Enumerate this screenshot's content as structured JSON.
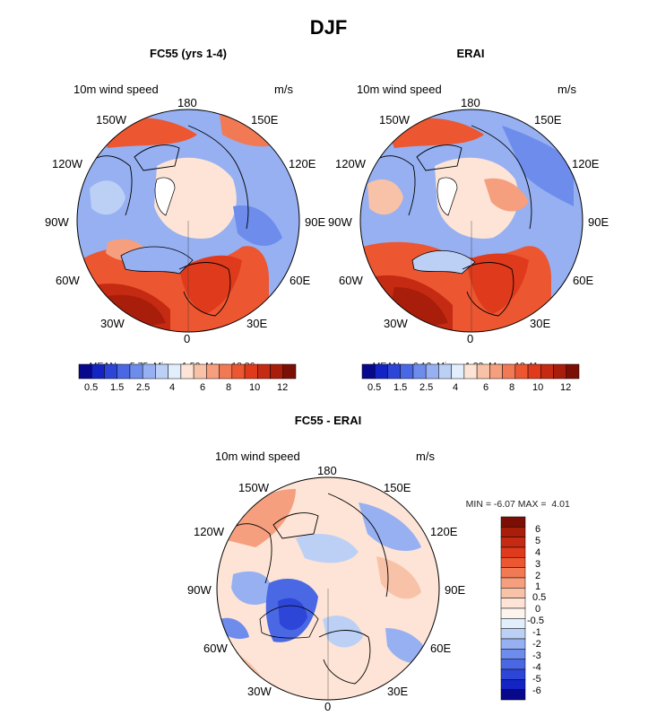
{
  "title": "DJF",
  "colors": {
    "hbar": [
      "#08088c",
      "#1424c4",
      "#2e46d8",
      "#4a68e4",
      "#6d8cec",
      "#96b0f2",
      "#bcd0f6",
      "#e2eefc",
      "#fde4d6",
      "#f8c2a8",
      "#f59f7e",
      "#f17a55",
      "#ec5631",
      "#df3a1c",
      "#c52a12",
      "#a81e0b",
      "#7c0f05"
    ],
    "vbar": [
      "#7c0f05",
      "#a81e0b",
      "#c52a12",
      "#df3a1c",
      "#ec5631",
      "#f17a55",
      "#f59f7e",
      "#f8c2a8",
      "#fde4d6",
      "#fdf4ee",
      "#e2eefc",
      "#bcd0f6",
      "#96b0f2",
      "#6d8cec",
      "#4a68e4",
      "#2e46d8",
      "#1424c4",
      "#08088c"
    ]
  },
  "panels": [
    {
      "id": "fc55",
      "subtitle": "FC55 (yrs 1-4)",
      "variable": "10m wind speed",
      "units": "m/s",
      "lon_labels": {
        "n180": "180",
        "n150w": "150W",
        "n150e": "150E",
        "n120w": "120W",
        "n120e": "120E",
        "n90w": "90W",
        "n90e": "90E",
        "n60w": "60W",
        "n60e": "60E",
        "n30w": "30W",
        "n30e": "30E",
        "n0": "0"
      },
      "stats": {
        "mean_label": "MEAN=",
        "mean": "5.75",
        "min_label": "Min=",
        "min": "1.50",
        "max_label": "Max=",
        "max": "13.36"
      },
      "colorbar_ticks": [
        "0.5",
        "1.5",
        "2.5",
        "4",
        "6",
        "8",
        "10",
        "12"
      ]
    },
    {
      "id": "erai",
      "subtitle": "ERAI",
      "variable": "10m wind speed",
      "units": "m/s",
      "lon_labels": {
        "n180": "180",
        "n150w": "150W",
        "n150e": "150E",
        "n120w": "120W",
        "n120e": "120E",
        "n90w": "90W",
        "n90e": "90E",
        "n60w": "60W",
        "n60e": "60E",
        "n30w": "30W",
        "n30e": "30E",
        "n0": "0"
      },
      "stats": {
        "mean_label": "MEAN=",
        "mean": "6.12",
        "min_label": "Min=",
        "min": "1.39",
        "max_label": "Max=",
        "max": "12.41"
      },
      "colorbar_ticks": [
        "0.5",
        "1.5",
        "2.5",
        "4",
        "6",
        "8",
        "10",
        "12"
      ]
    },
    {
      "id": "diff",
      "subtitle": "FC55 - ERAI",
      "variable": "10m wind speed",
      "units": "m/s",
      "lon_labels": {
        "n180": "180",
        "n150w": "150W",
        "n150e": "150E",
        "n120w": "120W",
        "n120e": "120E",
        "n90w": "90W",
        "n90e": "90E",
        "n60w": "60W",
        "n60e": "60E",
        "n30w": "30W",
        "n30e": "30E",
        "n0": "0"
      },
      "stats": {
        "min_label": "MIN =",
        "min": "-6.07",
        "max_label": "MAX =",
        "max": "4.01"
      },
      "colorbar_ticks": [
        "6",
        "5",
        "4",
        "3",
        "2",
        "1",
        "0.5",
        "0",
        "-0.5",
        "-1",
        "-2",
        "-3",
        "-4",
        "-5",
        "-6"
      ]
    }
  ]
}
